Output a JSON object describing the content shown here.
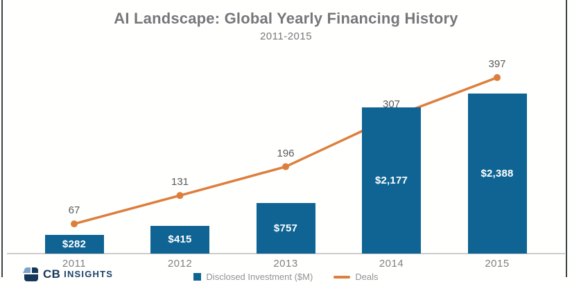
{
  "page": {
    "title": "AI Landscape: Global Yearly Financing History",
    "subtitle": "2011-2015"
  },
  "chart_data": {
    "type": "bar",
    "title": "AI Landscape: Global Yearly Financing History",
    "subtitle": "2011-2015",
    "categories": [
      "2011",
      "2012",
      "2013",
      "2014",
      "2015"
    ],
    "series": [
      {
        "name": "Disclosed Investment ($M)",
        "type": "bar",
        "values": [
          282,
          415,
          757,
          2177,
          2388
        ],
        "value_labels": [
          "$282",
          "$415",
          "$757",
          "$2,177",
          "$2,388"
        ],
        "color": "#0f6493"
      },
      {
        "name": "Deals",
        "type": "line",
        "values": [
          67,
          131,
          196,
          307,
          397
        ],
        "value_labels": [
          "67",
          "131",
          "196",
          "307",
          "397"
        ],
        "color": "#dd7e3c"
      }
    ],
    "xlabel": "",
    "ylabel": "",
    "grid": false,
    "legend_position": "bottom",
    "bar_label_placement": "inside-center",
    "line_label_placement": "above-point"
  },
  "legend": {
    "items": [
      {
        "label": "Disclosed Investment ($M)",
        "color": "#0f6493",
        "marker": "square"
      },
      {
        "label": "Deals",
        "color": "#dd7e3c",
        "marker": "line"
      }
    ]
  },
  "logo": {
    "name": "CB Insights",
    "prefix": "CB",
    "suffix": "INSIGHTS"
  },
  "colors": {
    "bar_blue": "#0f6493",
    "line_orange": "#dd7e3c",
    "title_gray": "#76777a",
    "deal_label_gray": "#58595b",
    "tick_gray": "#7f8184",
    "axis_gray": "#cbcccd",
    "border_dark": "#3c4347",
    "bar_text_white": "#ffffff"
  }
}
